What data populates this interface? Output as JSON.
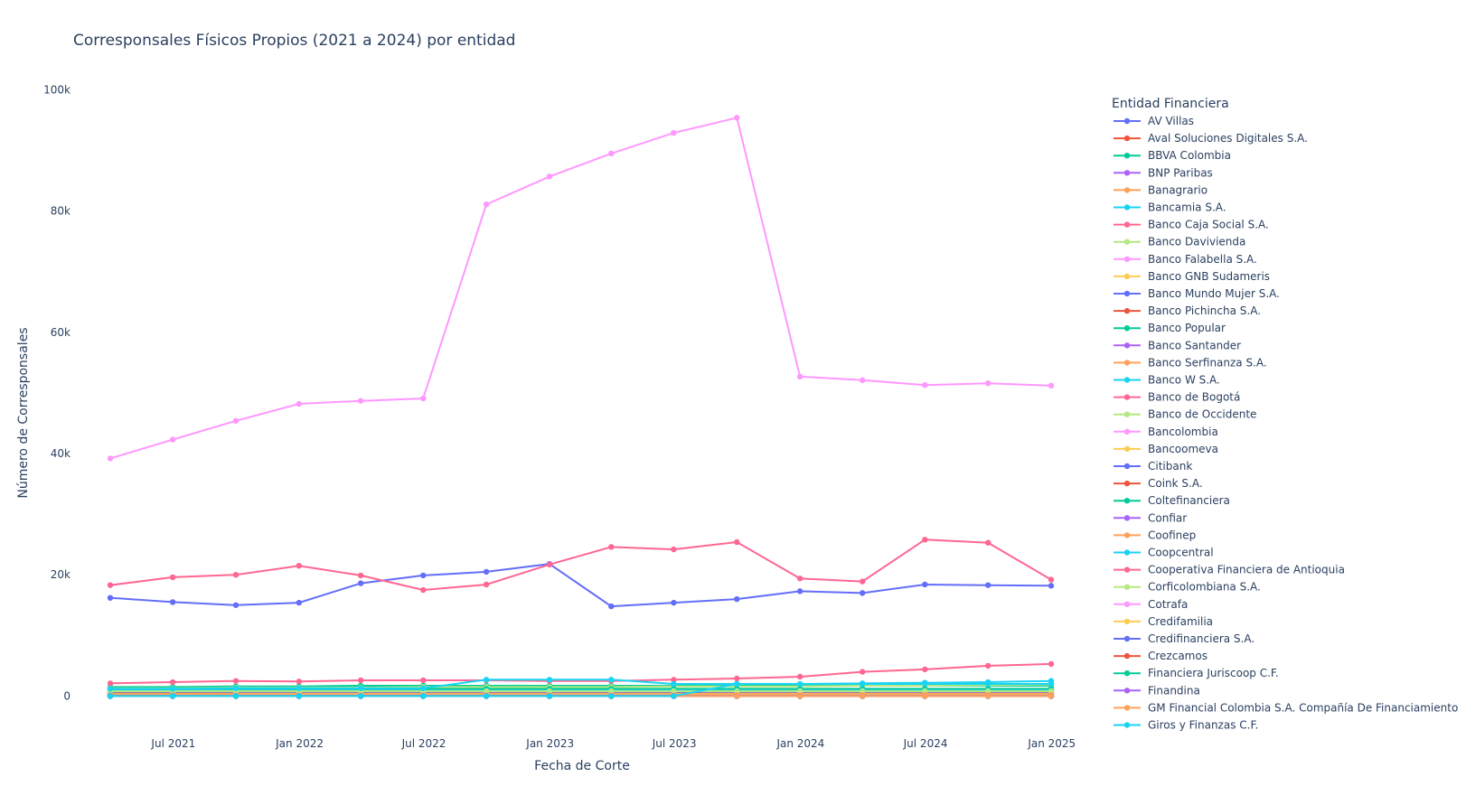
{
  "chart_data": {
    "type": "line",
    "title": "Corresponsales Físicos Propios (2021 a 2024) por entidad",
    "xlabel": "Fecha de Corte",
    "ylabel": "Número de Corresponsales",
    "legend_title": "Entidad Financiera",
    "legend_position": "right",
    "grid": false,
    "x": [
      "2021-03-31",
      "2021-06-30",
      "2021-09-30",
      "2021-12-31",
      "2022-03-31",
      "2022-06-30",
      "2022-09-30",
      "2022-12-31",
      "2023-03-31",
      "2023-06-30",
      "2023-09-30",
      "2023-12-31",
      "2024-03-31",
      "2024-06-30",
      "2024-09-30",
      "2024-12-31"
    ],
    "xticks": [
      {
        "date": "2021-07-01",
        "label": "Jul 2021"
      },
      {
        "date": "2022-01-01",
        "label": "Jan 2022"
      },
      {
        "date": "2022-07-01",
        "label": "Jul 2022"
      },
      {
        "date": "2023-01-01",
        "label": "Jan 2023"
      },
      {
        "date": "2023-07-01",
        "label": "Jul 2023"
      },
      {
        "date": "2024-01-01",
        "label": "Jan 2024"
      },
      {
        "date": "2024-07-01",
        "label": "Jul 2024"
      },
      {
        "date": "2025-01-01",
        "label": "Jan 2025"
      }
    ],
    "xlim": [
      "2021-02-05",
      "2025-01-25"
    ],
    "ylim": [
      -5000,
      102000
    ],
    "yticks": [
      {
        "value": 0,
        "label": "0"
      },
      {
        "value": 20000,
        "label": "20k"
      },
      {
        "value": 40000,
        "label": "40k"
      },
      {
        "value": 60000,
        "label": "60k"
      },
      {
        "value": 80000,
        "label": "80k"
      },
      {
        "value": 100000,
        "label": "100k"
      }
    ],
    "series": [
      {
        "name": "AV Villas",
        "color": "#636efa",
        "values": [
          16200,
          15500,
          15000,
          15400,
          18600,
          19900,
          20500,
          21800,
          14800,
          15400,
          16000,
          17300,
          17000,
          18400,
          18300,
          18200
        ]
      },
      {
        "name": "Aval Soluciones Digitales S.A.",
        "color": "#EF553B",
        "values": [
          500,
          500,
          600,
          600,
          600,
          600,
          600,
          600,
          600,
          600,
          600,
          600,
          600,
          600,
          600,
          600
        ]
      },
      {
        "name": "BBVA Colombia",
        "color": "#00cc96",
        "values": [
          1500,
          1500,
          1600,
          1600,
          1700,
          1700,
          1700,
          1700,
          1700,
          1700,
          1700,
          1700,
          1700,
          1700,
          1700,
          1700
        ]
      },
      {
        "name": "BNP Paribas",
        "color": "#ab63fa",
        "values": [
          0,
          0,
          0,
          0,
          0,
          0,
          0,
          0,
          0,
          0,
          0,
          0,
          0,
          0,
          0,
          0
        ]
      },
      {
        "name": "Banagrario",
        "color": "#FFA15A",
        "values": [
          1000,
          1000,
          1000,
          1000,
          1000,
          1000,
          1000,
          1000,
          1000,
          1000,
          1000,
          1000,
          1000,
          1000,
          1000,
          1000
        ]
      },
      {
        "name": "Bancamia S.A.",
        "color": "#19d3f3",
        "values": [
          100,
          100,
          100,
          100,
          100,
          100,
          100,
          100,
          100,
          100,
          100,
          100,
          100,
          100,
          100,
          100
        ]
      },
      {
        "name": "Banco Caja Social S.A.",
        "color": "#FF6692",
        "values": [
          18300,
          19600,
          20000,
          21500,
          19900,
          17500,
          18400,
          21700,
          24600,
          24200,
          25400,
          19400,
          18900,
          25800,
          25300,
          19200
        ]
      },
      {
        "name": "Banco Davivienda",
        "color": "#B6E880",
        "values": [
          1300,
          1300,
          1400,
          1400,
          1400,
          1500,
          1500,
          1500,
          1500,
          1600,
          1600,
          1600,
          1700,
          1700,
          1800,
          1900
        ]
      },
      {
        "name": "Banco Falabella S.A.",
        "color": "#FF97FF",
        "values": [
          39200,
          42300,
          45400,
          48200,
          48700,
          49100,
          81100,
          85700,
          89500,
          92900,
          95400,
          52700,
          52100,
          51300,
          51600,
          51200
        ]
      },
      {
        "name": "Banco GNB Sudameris",
        "color": "#FECB52",
        "values": [
          300,
          300,
          300,
          300,
          300,
          300,
          300,
          300,
          300,
          300,
          300,
          300,
          300,
          300,
          300,
          300
        ]
      },
      {
        "name": "Banco Mundo Mujer S.A.",
        "color": "#636efa",
        "values": [
          700,
          700,
          700,
          700,
          700,
          700,
          700,
          700,
          700,
          700,
          700,
          700,
          700,
          700,
          700,
          700
        ]
      },
      {
        "name": "Banco Pichincha S.A.",
        "color": "#EF553B",
        "values": [
          200,
          200,
          200,
          200,
          200,
          200,
          200,
          200,
          200,
          200,
          200,
          200,
          200,
          200,
          200,
          200
        ]
      },
      {
        "name": "Banco Popular",
        "color": "#00cc96",
        "values": [
          1200,
          1200,
          1200,
          1200,
          1200,
          1200,
          1200,
          1200,
          1200,
          1200,
          1200,
          1200,
          1200,
          1200,
          1200,
          1200
        ]
      },
      {
        "name": "Banco Santander",
        "color": "#ab63fa",
        "values": [
          0,
          0,
          0,
          0,
          0,
          0,
          0,
          0,
          0,
          0,
          0,
          0,
          0,
          0,
          0,
          0
        ]
      },
      {
        "name": "Banco Serfinanza S.A.",
        "color": "#FFA15A",
        "values": [
          100,
          100,
          100,
          100,
          100,
          100,
          100,
          100,
          100,
          100,
          100,
          100,
          100,
          100,
          100,
          100
        ]
      },
      {
        "name": "Banco W S.A.",
        "color": "#19d3f3",
        "values": [
          900,
          900,
          900,
          900,
          900,
          900,
          900,
          900,
          900,
          900,
          900,
          900,
          900,
          900,
          900,
          900
        ]
      },
      {
        "name": "Banco de Bogotá",
        "color": "#FF6692",
        "values": [
          2100,
          2300,
          2500,
          2400,
          2600,
          2600,
          2600,
          2500,
          2500,
          2700,
          2900,
          3200,
          4000,
          4400,
          5000,
          5300
        ]
      },
      {
        "name": "Banco de Occidente",
        "color": "#B6E880",
        "values": [
          800,
          800,
          800,
          800,
          800,
          800,
          800,
          800,
          800,
          800,
          800,
          800,
          800,
          800,
          800,
          800
        ]
      },
      {
        "name": "Bancolombia",
        "color": "#FF97FF",
        "values": [
          0,
          0,
          0,
          0,
          0,
          0,
          0,
          0,
          0,
          0,
          0,
          0,
          0,
          0,
          0,
          0
        ]
      },
      {
        "name": "Bancoomeva",
        "color": "#FECB52",
        "values": [
          200,
          200,
          200,
          200,
          200,
          200,
          200,
          200,
          200,
          200,
          200,
          200,
          200,
          200,
          200,
          200
        ]
      },
      {
        "name": "Citibank",
        "color": "#636efa",
        "values": [
          0,
          0,
          0,
          0,
          0,
          0,
          0,
          0,
          0,
          0,
          0,
          0,
          0,
          0,
          0,
          0
        ]
      },
      {
        "name": "Coink S.A.",
        "color": "#EF553B",
        "values": [
          0,
          0,
          0,
          0,
          0,
          0,
          0,
          0,
          0,
          0,
          0,
          0,
          0,
          0,
          0,
          0
        ]
      },
      {
        "name": "Coltefinanciera",
        "color": "#00cc96",
        "values": [
          0,
          0,
          0,
          0,
          0,
          0,
          0,
          0,
          0,
          0,
          0,
          0,
          0,
          0,
          0,
          0
        ]
      },
      {
        "name": "Confiar",
        "color": "#ab63fa",
        "values": [
          0,
          0,
          0,
          0,
          0,
          0,
          0,
          0,
          0,
          0,
          0,
          0,
          0,
          0,
          0,
          0
        ]
      },
      {
        "name": "Coofinep",
        "color": "#FFA15A",
        "values": [
          0,
          0,
          0,
          0,
          0,
          0,
          0,
          0,
          0,
          0,
          0,
          0,
          0,
          0,
          0,
          0
        ]
      },
      {
        "name": "Coopcentral",
        "color": "#19d3f3",
        "values": [
          1200,
          1200,
          1300,
          1300,
          1300,
          1300,
          2700,
          2700,
          2700,
          2000,
          2000,
          2000,
          2000,
          2000,
          2000,
          2000
        ]
      },
      {
        "name": "Cooperativa Financiera de Antioquia",
        "color": "#FF6692",
        "values": [
          100,
          100,
          100,
          100,
          100,
          100,
          100,
          100,
          100,
          100,
          100,
          100,
          100,
          100,
          100,
          100
        ]
      },
      {
        "name": "Corficolombiana S.A.",
        "color": "#B6E880",
        "values": [
          0,
          0,
          0,
          0,
          0,
          0,
          0,
          0,
          0,
          0,
          0,
          0,
          0,
          0,
          0,
          0
        ]
      },
      {
        "name": "Cotrafa",
        "color": "#FF97FF",
        "values": [
          0,
          0,
          0,
          0,
          0,
          0,
          0,
          0,
          0,
          0,
          0,
          0,
          0,
          0,
          0,
          0
        ]
      },
      {
        "name": "Credifamilia",
        "color": "#FECB52",
        "values": [
          0,
          0,
          0,
          0,
          0,
          0,
          0,
          0,
          0,
          0,
          0,
          0,
          0,
          0,
          0,
          0
        ]
      },
      {
        "name": "Credifinanciera S.A.",
        "color": "#636efa",
        "values": [
          0,
          0,
          0,
          0,
          0,
          0,
          0,
          0,
          0,
          0,
          0,
          0,
          0,
          0,
          0,
          0
        ]
      },
      {
        "name": "Crezcamos",
        "color": "#EF553B",
        "values": [
          0,
          0,
          0,
          0,
          0,
          0,
          0,
          0,
          0,
          0,
          0,
          0,
          0,
          0,
          0,
          0
        ]
      },
      {
        "name": "Financiera Juriscoop C.F.",
        "color": "#00cc96",
        "values": [
          0,
          0,
          0,
          0,
          0,
          0,
          0,
          0,
          0,
          0,
          0,
          0,
          0,
          0,
          0,
          0
        ]
      },
      {
        "name": "Finandina",
        "color": "#ab63fa",
        "values": [
          0,
          0,
          0,
          0,
          0,
          0,
          0,
          0,
          0,
          0,
          0,
          0,
          0,
          0,
          0,
          0
        ]
      },
      {
        "name": "GM Financial Colombia S.A. Compañía De Financiamiento",
        "color": "#FFA15A",
        "values": [
          0,
          0,
          0,
          0,
          0,
          0,
          0,
          0,
          0,
          0,
          0,
          0,
          0,
          0,
          0,
          0
        ]
      },
      {
        "name": "Giros y Finanzas C.F.",
        "color": "#19d3f3",
        "values": [
          0,
          0,
          0,
          0,
          0,
          0,
          0,
          0,
          0,
          0,
          2000,
          2000,
          2100,
          2200,
          2300,
          2500
        ]
      }
    ]
  }
}
